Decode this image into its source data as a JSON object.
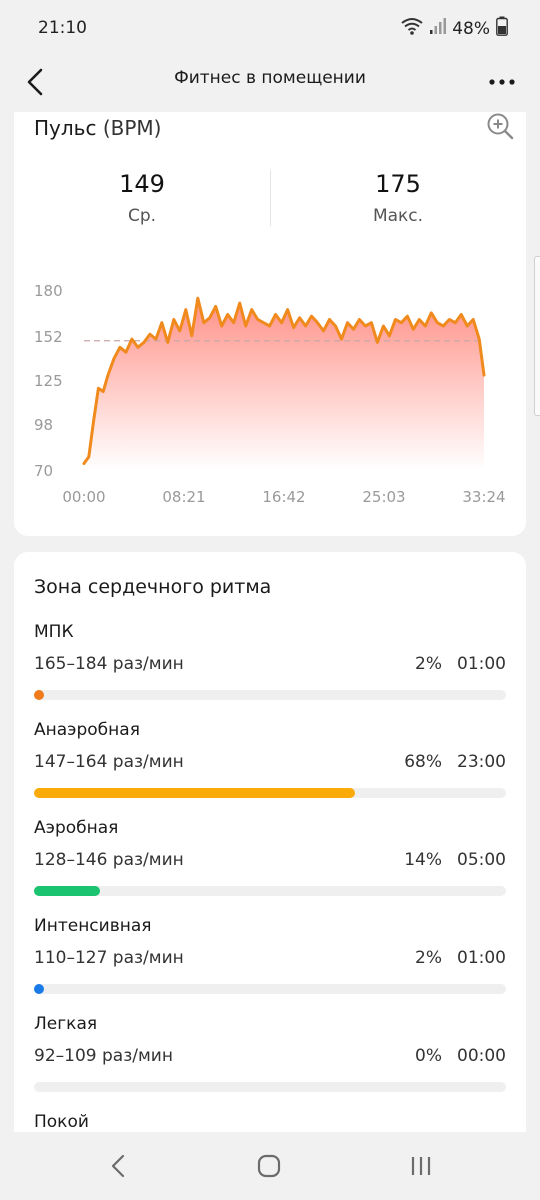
{
  "status": {
    "time": "21:10",
    "battery": "48%",
    "icons": [
      "wifi-icon",
      "signal-icon",
      "battery-icon"
    ]
  },
  "header": {
    "title": "Фитнес в помещении",
    "back_icon": "back-arrow-icon",
    "more_icon": "more-icon"
  },
  "pulse": {
    "title": "Пульс",
    "unit": "(BPM)",
    "zoom_icon": "zoom-in-icon",
    "avg_value": "149",
    "avg_label": "Ср.",
    "max_value": "175",
    "max_label": "Макс."
  },
  "chart_data": {
    "type": "area",
    "y_ticks": [
      "180",
      "152",
      "125",
      "98",
      "70"
    ],
    "x_ticks": [
      "00:00",
      "08:21",
      "16:42",
      "25:03",
      "33:24"
    ],
    "ylim": [
      70,
      180
    ],
    "average_line": 149,
    "line_color": "#f08a1d",
    "fill_color": "#ff8a80",
    "x": [
      0.0,
      0.4,
      0.8,
      1.2,
      1.6,
      2.0,
      2.5,
      3.0,
      3.5,
      4.0,
      4.5,
      5.0,
      5.5,
      6.0,
      6.5,
      7.0,
      7.5,
      8.0,
      8.5,
      9.0,
      9.5,
      10.0,
      10.5,
      11.0,
      11.5,
      12.0,
      12.5,
      13.0,
      13.5,
      14.0,
      14.5,
      15.0,
      15.5,
      16.0,
      16.5,
      17.0,
      17.5,
      18.0,
      18.5,
      19.0,
      19.5,
      20.0,
      20.5,
      21.0,
      21.5,
      22.0,
      22.5,
      23.0,
      23.5,
      24.0,
      24.5,
      25.0,
      25.5,
      26.0,
      26.5,
      27.0,
      27.5,
      28.0,
      28.5,
      29.0,
      29.5,
      30.0,
      30.5,
      31.0,
      31.5,
      32.0,
      32.5,
      33.0,
      33.4
    ],
    "y": [
      74,
      78,
      100,
      120,
      118,
      128,
      138,
      145,
      142,
      150,
      145,
      148,
      153,
      150,
      160,
      148,
      162,
      155,
      168,
      152,
      175,
      160,
      163,
      170,
      158,
      165,
      160,
      172,
      158,
      168,
      162,
      160,
      158,
      165,
      160,
      168,
      157,
      163,
      158,
      164,
      160,
      155,
      162,
      158,
      150,
      160,
      156,
      162,
      158,
      160,
      148,
      158,
      152,
      162,
      160,
      164,
      156,
      162,
      158,
      166,
      160,
      158,
      162,
      160,
      165,
      158,
      162,
      150,
      128
    ]
  },
  "zones": {
    "title": "Зона сердечного ритма",
    "items": [
      {
        "name": "МПК",
        "range": "165–184 раз/мин",
        "percent": "2%",
        "time": "01:00",
        "fraction": 0.02,
        "color": "#f07b1d"
      },
      {
        "name": "Анаэробная",
        "range": "147–164 раз/мин",
        "percent": "68%",
        "time": "23:00",
        "fraction": 0.68,
        "color": "#fbab09"
      },
      {
        "name": "Аэробная",
        "range": "128–146 раз/мин",
        "percent": "14%",
        "time": "05:00",
        "fraction": 0.14,
        "color": "#19c36f"
      },
      {
        "name": "Интенсивная",
        "range": "110–127 раз/мин",
        "percent": "2%",
        "time": "01:00",
        "fraction": 0.02,
        "color": "#1a7be8"
      },
      {
        "name": "Легкая",
        "range": "92–109 раз/мин",
        "percent": "0%",
        "time": "00:00",
        "fraction": 0.0,
        "color": "#9e9e9e"
      },
      {
        "name": "Покой",
        "range": "",
        "percent": "",
        "time": "",
        "fraction": 0.0,
        "color": "#9e9e9e"
      }
    ]
  },
  "nav": {
    "back_icon": "nav-back-icon",
    "home_icon": "nav-home-icon",
    "recents_icon": "nav-recents-icon"
  }
}
